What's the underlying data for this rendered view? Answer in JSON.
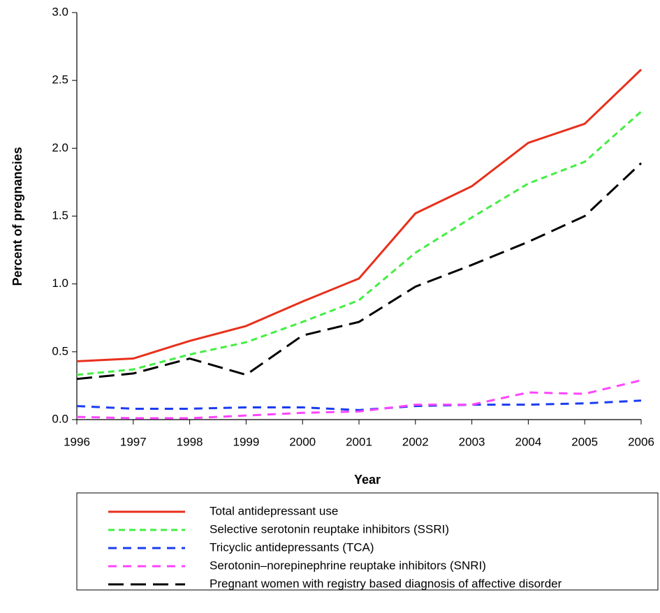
{
  "chart_data": {
    "type": "line",
    "xlabel": "Year",
    "ylabel": "Percent of pregnancies",
    "x": [
      1996,
      1997,
      1998,
      1999,
      2000,
      2001,
      2002,
      2003,
      2004,
      2005,
      2006
    ],
    "xlim": [
      1996,
      2006
    ],
    "xticks": [
      1996,
      1997,
      1998,
      1999,
      2000,
      2001,
      2002,
      2003,
      2004,
      2005,
      2006
    ],
    "ylim": [
      0,
      3
    ],
    "yticks": [
      {
        "value": 0,
        "label": "0.0"
      },
      0.5,
      {
        "value": 1,
        "label": "1.0"
      },
      1.5,
      {
        "value": 2,
        "label": "2.0"
      },
      2.5,
      {
        "value": 3,
        "label": "3.0"
      }
    ],
    "legend": "bottom",
    "series": [
      {
        "name": "Total antidepressant use",
        "color": "#e8301c",
        "dash": "solid",
        "values": [
          0.43,
          0.45,
          0.58,
          0.69,
          0.87,
          1.04,
          1.52,
          1.72,
          2.04,
          2.18,
          2.58
        ]
      },
      {
        "name": "Selective serotonin reuptake inhibitors (SSRI)",
        "color": "#44ee44",
        "dash": "short",
        "values": [
          0.33,
          0.37,
          0.48,
          0.57,
          0.72,
          0.88,
          1.23,
          1.49,
          1.74,
          1.9,
          2.27
        ]
      },
      {
        "name": "Tricyclic antidepressants (TCA)",
        "color": "#1a3cf0",
        "dash": "medium",
        "values": [
          0.1,
          0.08,
          0.08,
          0.09,
          0.09,
          0.07,
          0.1,
          0.11,
          0.11,
          0.12,
          0.14
        ]
      },
      {
        "name": "Serotonin–norepinephrine reuptake inhibitors (SNRI)",
        "color": "#ff44ff",
        "dash": "medium",
        "values": [
          0.02,
          0.01,
          0.01,
          0.03,
          0.05,
          0.06,
          0.11,
          0.11,
          0.2,
          0.19,
          0.29
        ]
      },
      {
        "name": "Pregnant women with registry based diagnosis of affective disorder",
        "color": "#000000",
        "dash": "long",
        "values": [
          0.3,
          0.34,
          0.45,
          0.33,
          0.62,
          0.72,
          0.98,
          1.14,
          1.31,
          1.5,
          1.89
        ]
      }
    ]
  }
}
